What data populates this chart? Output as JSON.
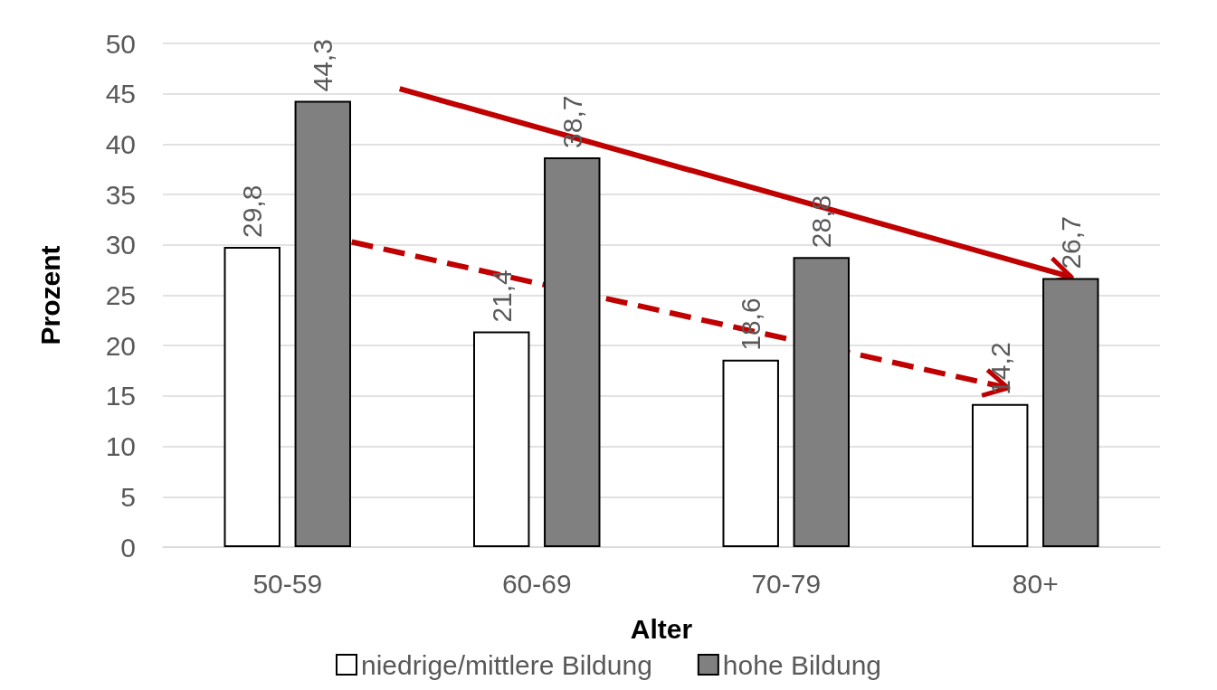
{
  "chart_data": {
    "type": "bar",
    "xlabel": "Alter",
    "ylabel": "Prozent",
    "categories": [
      "50-59",
      "60-69",
      "70-79",
      "80+"
    ],
    "series": [
      {
        "name": "niedrige/mittlere Bildung",
        "color": "#ffffff",
        "values": [
          29.8,
          21.4,
          18.6,
          14.2
        ],
        "value_labels": [
          "29,8",
          "21,4",
          "18,6",
          "14,2"
        ]
      },
      {
        "name": "hohe Bildung",
        "color": "#808080",
        "values": [
          44.3,
          38.7,
          28.8,
          26.7
        ],
        "value_labels": [
          "44,3",
          "38,7",
          "28,8",
          "26,7"
        ]
      }
    ],
    "ylim": [
      0,
      50
    ],
    "yticks": [
      0,
      5,
      10,
      15,
      20,
      25,
      30,
      35,
      40,
      45,
      50
    ],
    "grid": "y",
    "legend": "bottom"
  }
}
